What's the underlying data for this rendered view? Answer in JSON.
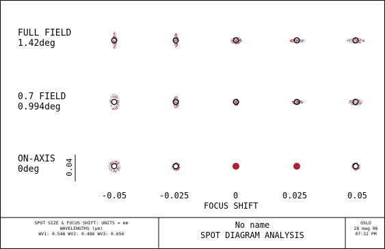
{
  "fields": [
    {
      "name": "FULL FIELD",
      "angle": "1.42deg"
    },
    {
      "name": "0.7 FIELD",
      "angle": "0.994deg"
    },
    {
      "name": "ON-AXIS",
      "angle": "0deg"
    }
  ],
  "scale_bar": {
    "label": "0.04"
  },
  "focus_shifts": [
    "-0.05",
    "-0.025",
    "0",
    "0.025",
    "0.05"
  ],
  "x_axis_label": "FOCUS SHIFT",
  "footer": {
    "units_line": "SPOT SIZE & FOCUS SHIFT: UNITS = mm",
    "wavelengths_line": "WAVELENGTHS (μm)",
    "wv_line": "WV1: 0.546 WV2: 0.486 WV3: 0.656",
    "name": "No name",
    "title": "SPOT DIAGRAM ANALYSIS",
    "program": "OSLO",
    "date": "28 mag 06",
    "time": "07:32 PM"
  },
  "colors": {
    "line": "#000000",
    "wv1": "#d04040",
    "wv2": "#9c9cc8",
    "wv3": "#6a6a8a",
    "fill": "#c21c2c"
  }
}
